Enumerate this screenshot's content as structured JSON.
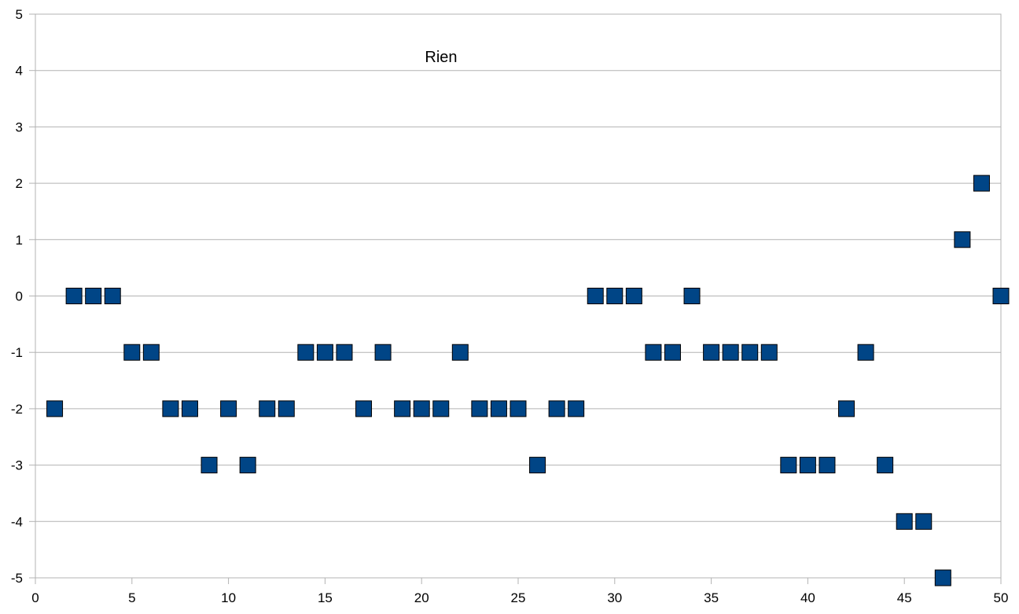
{
  "chart_data": {
    "type": "scatter",
    "title": "Rien",
    "xlabel": "",
    "ylabel": "",
    "xlim": [
      0,
      50
    ],
    "ylim": [
      -5,
      5
    ],
    "x_ticks": [
      0,
      5,
      10,
      15,
      20,
      25,
      30,
      35,
      40,
      45,
      50
    ],
    "y_ticks": [
      5,
      4,
      3,
      2,
      1,
      0,
      -1,
      -2,
      -3,
      -4,
      -5
    ],
    "x_tick_labels": [
      "0",
      "5",
      "10",
      "15",
      "20",
      "25",
      "30",
      "35",
      "40",
      "45",
      "50"
    ],
    "y_tick_labels": [
      "5",
      "4",
      "3",
      "2",
      "1",
      "0",
      "-1",
      "-2",
      "-3",
      "-4",
      "-5"
    ],
    "grid": "horizontal",
    "legend": "none",
    "marker": "square",
    "marker_color": "#004586",
    "series": [
      {
        "x": [
          1,
          2,
          3,
          4,
          5,
          6,
          7,
          8,
          9,
          10,
          11,
          12,
          13,
          14,
          15,
          16,
          17,
          18,
          19,
          20,
          21,
          22,
          23,
          24,
          25,
          26,
          27,
          28,
          29,
          30,
          31,
          32,
          33,
          34,
          35,
          36,
          37,
          38,
          39,
          40,
          41,
          42,
          43,
          44,
          45,
          46,
          47,
          48,
          49,
          50
        ],
        "y": [
          -2,
          0,
          0,
          0,
          -1,
          -1,
          -2,
          -2,
          -3,
          -2,
          -3,
          -2,
          -2,
          -1,
          -1,
          -1,
          -2,
          -1,
          -2,
          -2,
          -2,
          -1,
          -2,
          -2,
          -2,
          -3,
          -2,
          -2,
          0,
          0,
          0,
          -1,
          -1,
          0,
          -1,
          -1,
          -1,
          -1,
          -3,
          -3,
          -3,
          -2,
          -1,
          -3,
          -4,
          -4,
          -5,
          1,
          2,
          0
        ]
      }
    ]
  }
}
